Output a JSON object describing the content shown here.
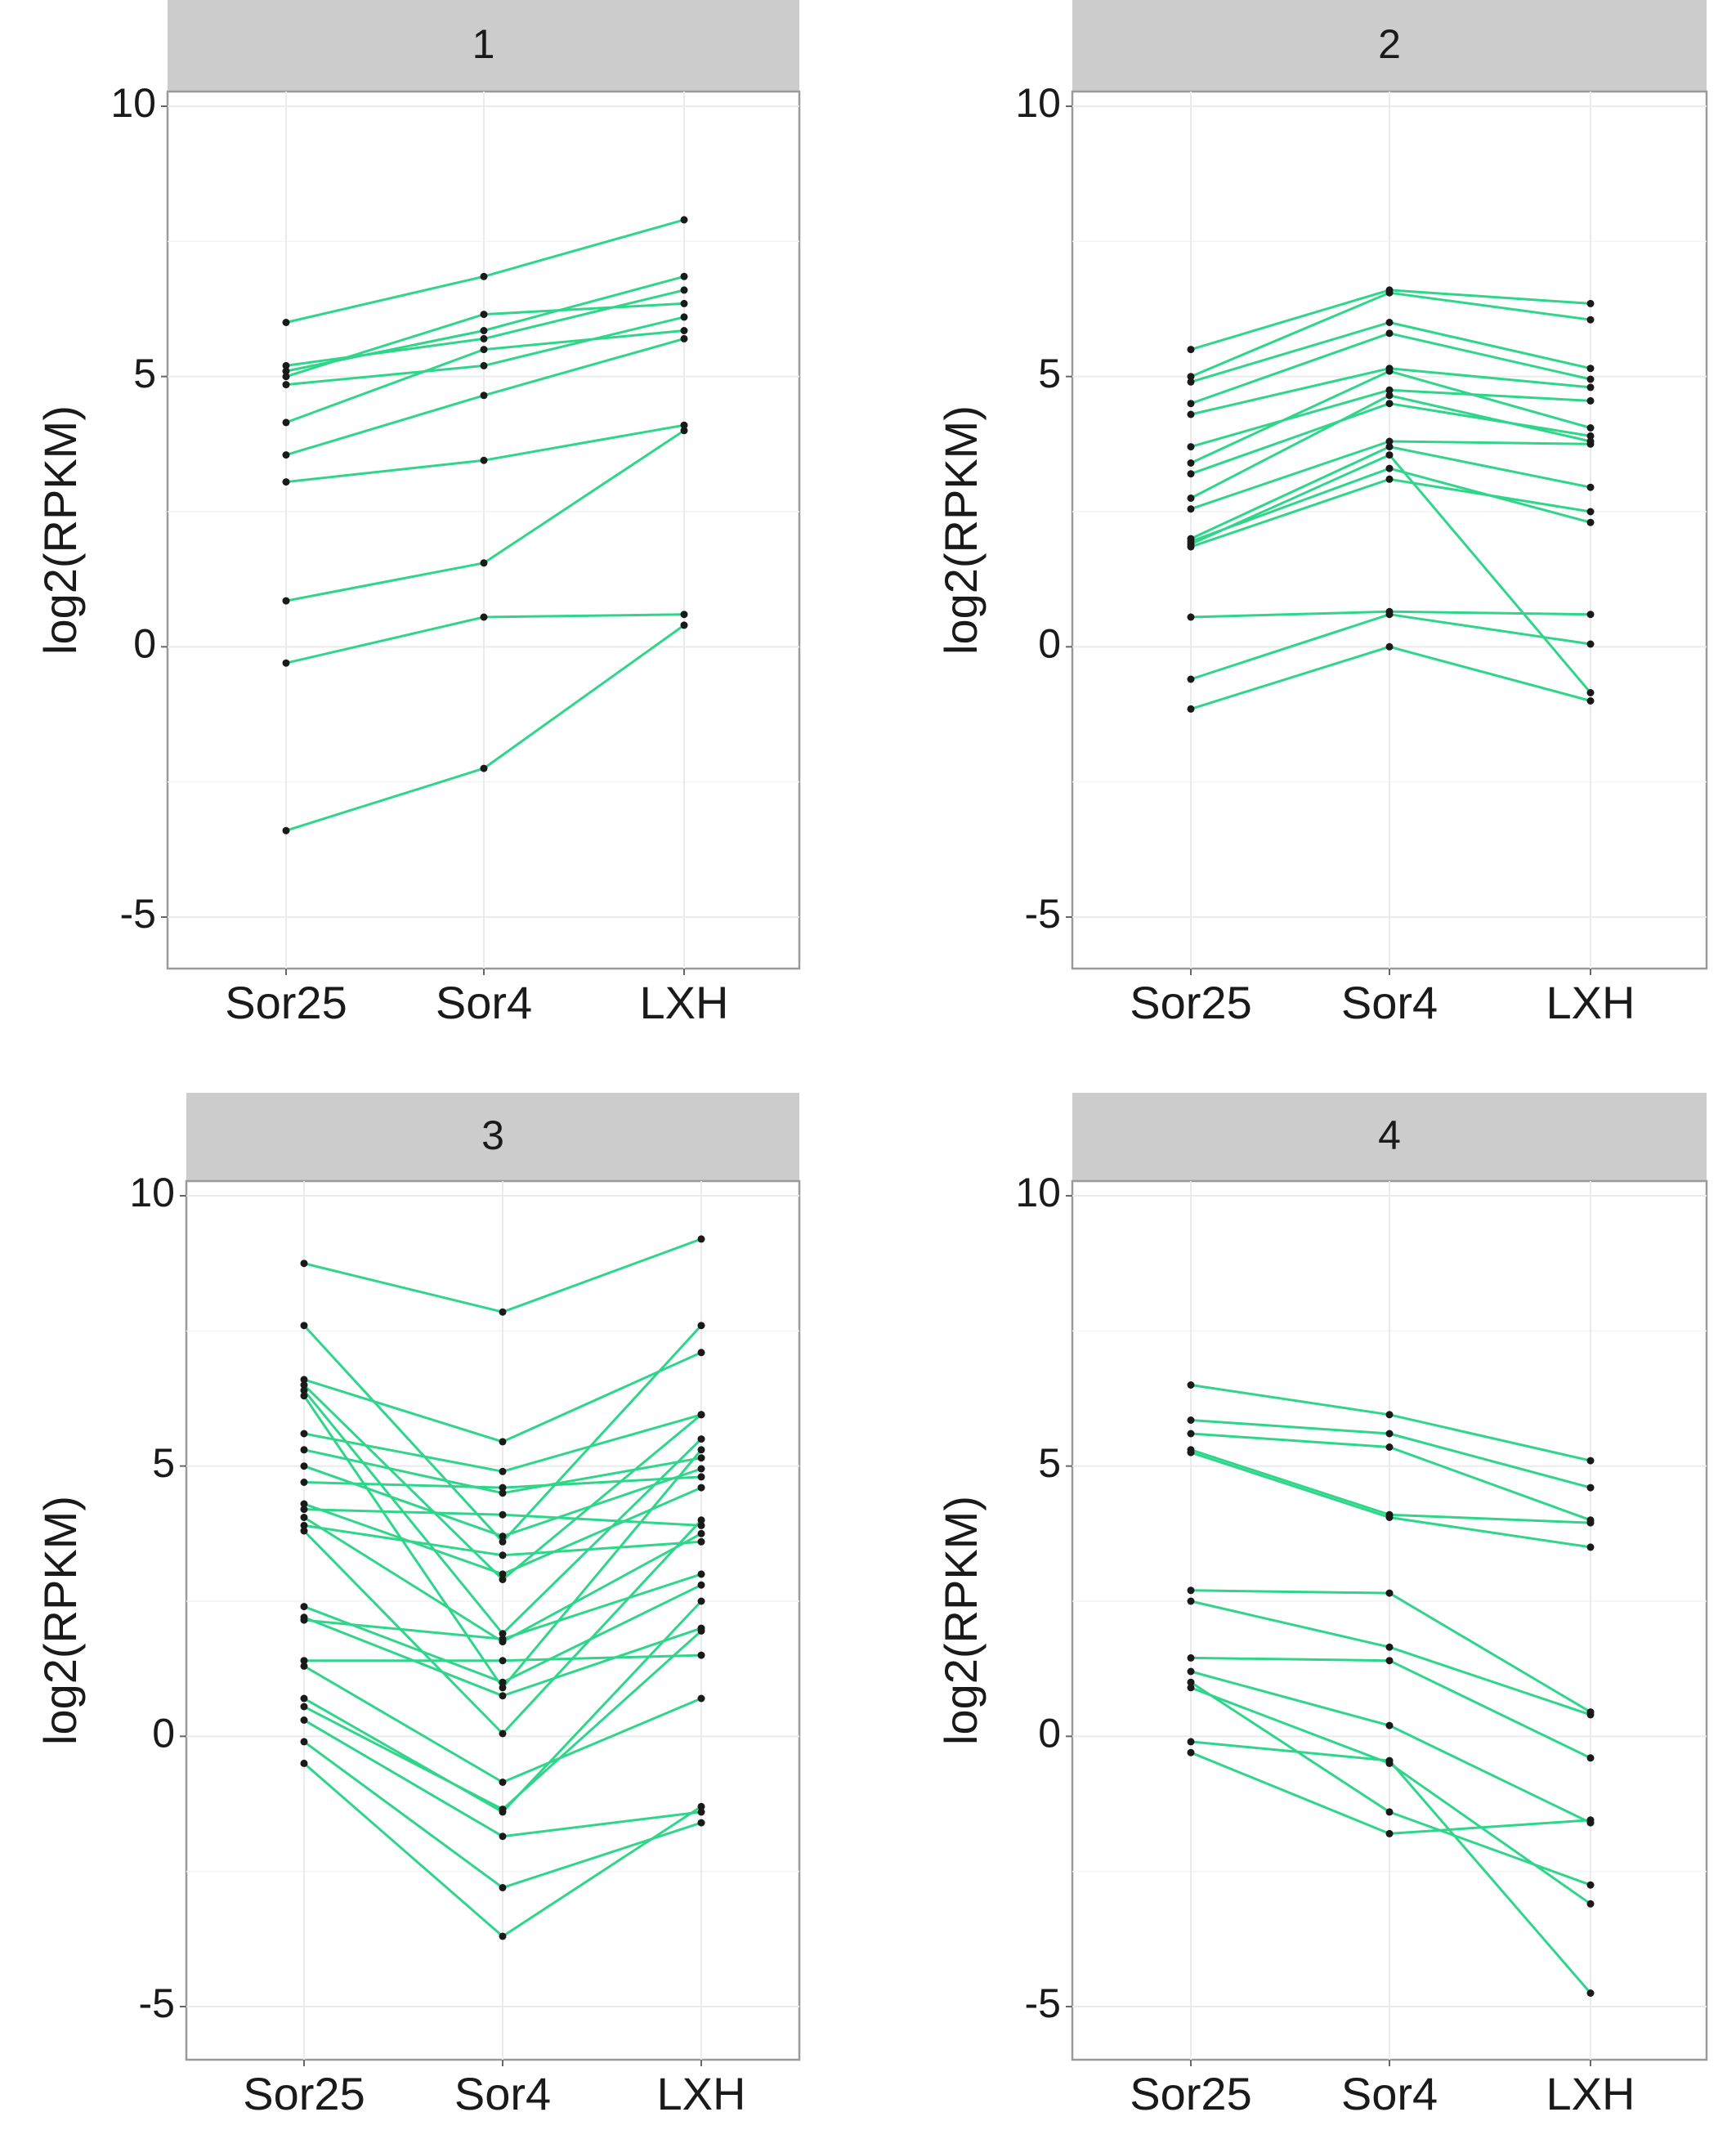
{
  "colors": {
    "line": "#2fd68a",
    "point": "#1a1a1a",
    "strip": "#cccccc"
  },
  "chart_data": [
    {
      "type": "line",
      "panel": "1",
      "ylabel": "log2(RPKM)",
      "categories": [
        "Sor25",
        "Sor4",
        "LXH"
      ],
      "yticks": [
        10,
        5,
        0,
        -5
      ],
      "ylim": [
        -6,
        10
      ],
      "series": [
        {
          "values": [
            6.0,
            6.85,
            7.9
          ]
        },
        {
          "values": [
            5.2,
            5.7,
            6.6
          ]
        },
        {
          "values": [
            5.1,
            5.85,
            6.85
          ]
        },
        {
          "values": [
            5.0,
            6.15,
            6.35
          ]
        },
        {
          "values": [
            4.85,
            5.2,
            6.1
          ]
        },
        {
          "values": [
            4.15,
            5.5,
            5.85
          ]
        },
        {
          "values": [
            3.55,
            4.65,
            5.7
          ]
        },
        {
          "values": [
            3.05,
            3.45,
            4.1
          ]
        },
        {
          "values": [
            0.85,
            1.55,
            4.0
          ]
        },
        {
          "values": [
            -0.3,
            0.55,
            0.6
          ]
        },
        {
          "values": [
            -3.4,
            -2.25,
            0.4
          ]
        }
      ]
    },
    {
      "type": "line",
      "panel": "2",
      "ylabel": "log2(RPKM)",
      "categories": [
        "Sor25",
        "Sor4",
        "LXH"
      ],
      "yticks": [
        10,
        5,
        0,
        -5
      ],
      "ylim": [
        -6,
        10
      ],
      "series": [
        {
          "values": [
            5.5,
            6.6,
            6.35
          ]
        },
        {
          "values": [
            5.0,
            6.55,
            6.05
          ]
        },
        {
          "values": [
            4.9,
            6.0,
            5.15
          ]
        },
        {
          "values": [
            4.5,
            5.8,
            4.95
          ]
        },
        {
          "values": [
            4.3,
            5.15,
            4.8
          ]
        },
        {
          "values": [
            3.7,
            4.75,
            4.55
          ]
        },
        {
          "values": [
            3.4,
            5.1,
            4.05
          ]
        },
        {
          "values": [
            3.2,
            4.5,
            3.9
          ]
        },
        {
          "values": [
            2.75,
            4.65,
            3.8
          ]
        },
        {
          "values": [
            2.55,
            3.8,
            3.75
          ]
        },
        {
          "values": [
            2.0,
            3.7,
            2.95
          ]
        },
        {
          "values": [
            1.85,
            3.1,
            2.5
          ]
        },
        {
          "values": [
            1.95,
            3.3,
            2.3
          ]
        },
        {
          "values": [
            1.9,
            3.55,
            -0.85
          ]
        },
        {
          "values": [
            0.55,
            0.65,
            0.6
          ]
        },
        {
          "values": [
            -0.6,
            0.6,
            0.05
          ]
        },
        {
          "values": [
            -1.15,
            0.0,
            -1.0
          ]
        }
      ]
    },
    {
      "type": "line",
      "panel": "3",
      "ylabel": "log2(RPKM)",
      "categories": [
        "Sor25",
        "Sor4",
        "LXH"
      ],
      "yticks": [
        10,
        5,
        0,
        -5
      ],
      "ylim": [
        -6,
        10
      ],
      "series": [
        {
          "values": [
            8.75,
            7.85,
            9.2
          ]
        },
        {
          "values": [
            7.6,
            3.6,
            7.6
          ]
        },
        {
          "values": [
            6.6,
            5.45,
            7.1
          ]
        },
        {
          "values": [
            6.5,
            2.9,
            5.95
          ]
        },
        {
          "values": [
            6.4,
            1.9,
            5.5
          ]
        },
        {
          "values": [
            6.3,
            0.9,
            5.3
          ]
        },
        {
          "values": [
            5.6,
            4.9,
            5.95
          ]
        },
        {
          "values": [
            5.3,
            4.5,
            5.15
          ]
        },
        {
          "values": [
            5.0,
            3.7,
            4.95
          ]
        },
        {
          "values": [
            4.7,
            4.6,
            4.8
          ]
        },
        {
          "values": [
            4.3,
            3.0,
            4.6
          ]
        },
        {
          "values": [
            4.2,
            4.1,
            3.9
          ]
        },
        {
          "values": [
            4.05,
            1.75,
            3.75
          ]
        },
        {
          "values": [
            3.9,
            3.35,
            3.6
          ]
        },
        {
          "values": [
            3.8,
            0.05,
            4.0
          ]
        },
        {
          "values": [
            2.4,
            1.0,
            2.8
          ]
        },
        {
          "values": [
            2.2,
            0.75,
            2.0
          ]
        },
        {
          "values": [
            2.15,
            1.8,
            3.0
          ]
        },
        {
          "values": [
            1.4,
            1.4,
            1.5
          ]
        },
        {
          "values": [
            1.3,
            -0.85,
            0.7
          ]
        },
        {
          "values": [
            0.7,
            -1.4,
            2.5
          ]
        },
        {
          "values": [
            0.55,
            -1.35,
            1.95
          ]
        },
        {
          "values": [
            0.3,
            -1.85,
            -1.4
          ]
        },
        {
          "values": [
            -0.1,
            -2.8,
            -1.6
          ]
        },
        {
          "values": [
            -0.5,
            -3.7,
            -1.3
          ]
        }
      ]
    },
    {
      "type": "line",
      "panel": "4",
      "ylabel": "log2(RPKM)",
      "categories": [
        "Sor25",
        "Sor4",
        "LXH"
      ],
      "yticks": [
        10,
        5,
        0,
        -5
      ],
      "ylim": [
        -6,
        10
      ],
      "series": [
        {
          "values": [
            6.5,
            5.95,
            5.1
          ]
        },
        {
          "values": [
            5.85,
            5.6,
            4.6
          ]
        },
        {
          "values": [
            5.6,
            5.35,
            4.0
          ]
        },
        {
          "values": [
            5.3,
            4.1,
            3.95
          ]
        },
        {
          "values": [
            5.25,
            4.05,
            3.5
          ]
        },
        {
          "values": [
            2.7,
            2.65,
            0.45
          ]
        },
        {
          "values": [
            2.5,
            1.65,
            0.4
          ]
        },
        {
          "values": [
            1.45,
            1.4,
            -0.4
          ]
        },
        {
          "values": [
            1.2,
            0.2,
            -1.6
          ]
        },
        {
          "values": [
            0.9,
            -0.5,
            -3.1
          ]
        },
        {
          "values": [
            1.0,
            -1.4,
            -2.75
          ]
        },
        {
          "values": [
            -0.1,
            -0.45,
            -4.75
          ]
        },
        {
          "values": [
            -0.3,
            -1.8,
            -1.55
          ]
        }
      ]
    }
  ]
}
